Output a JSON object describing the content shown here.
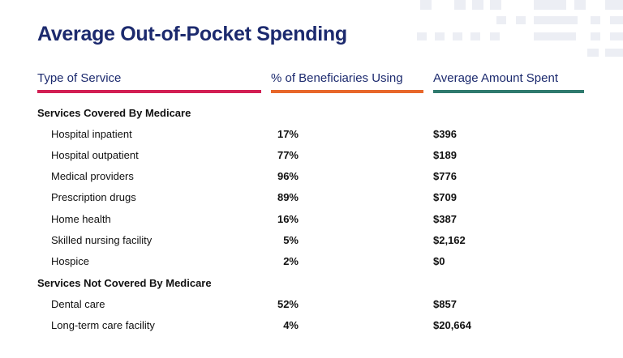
{
  "title": "Average Out-of-Pocket Spending",
  "columns": {
    "service": "Type of Service",
    "percent": "% of Beneficiaries Using",
    "amount": "Average Amount Spent"
  },
  "colors": {
    "service_rule": "#d21f54",
    "percent_rule": "#e8672b",
    "amount_rule": "#2f7a6e",
    "heading": "#1c2a6e"
  },
  "sections": [
    {
      "label": "Services Covered By Medicare",
      "rows": [
        {
          "service": "Hospital inpatient",
          "percent": "17%",
          "amount": "$396"
        },
        {
          "service": "Hospital outpatient",
          "percent": "77%",
          "amount": "$189"
        },
        {
          "service": "Medical providers",
          "percent": "96%",
          "amount": "$776"
        },
        {
          "service": "Prescription drugs",
          "percent": "89%",
          "amount": "$709"
        },
        {
          "service": "Home health",
          "percent": "16%",
          "amount": "$387"
        },
        {
          "service": "Skilled nursing facility",
          "percent": "5%",
          "amount": "$2,162"
        },
        {
          "service": "Hospice",
          "percent": "2%",
          "amount": "$0"
        }
      ]
    },
    {
      "label": "Services Not Covered By Medicare",
      "rows": [
        {
          "service": "Dental care",
          "percent": "52%",
          "amount": "$857"
        },
        {
          "service": "Long-term care facility",
          "percent": "4%",
          "amount": "$20,664"
        }
      ]
    }
  ]
}
